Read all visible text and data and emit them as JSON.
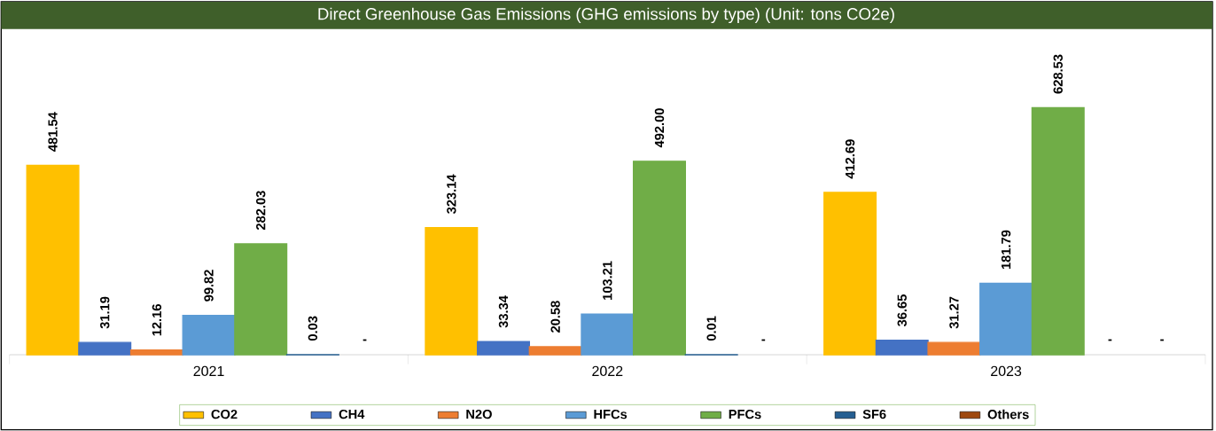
{
  "chart_data": {
    "type": "bar",
    "title": "Direct Greenhouse Gas Emissions (GHG emissions by type)  (Unit: tons CO2e)",
    "categories": [
      "2021",
      "2022",
      "2023"
    ],
    "series": [
      {
        "name": "CO2",
        "color": "#ffc000",
        "values": [
          481.54,
          323.14,
          412.69
        ],
        "value_labels": [
          "481.54",
          "323.14",
          "412.69"
        ]
      },
      {
        "name": "CH4",
        "color": "#4472c4",
        "values": [
          31.19,
          33.34,
          36.65
        ],
        "value_labels": [
          "31.19",
          "33.34",
          "36.65"
        ]
      },
      {
        "name": "N2O",
        "color": "#ed7d31",
        "values": [
          12.16,
          20.58,
          31.27
        ],
        "value_labels": [
          "12.16",
          "20.58",
          "31.27"
        ]
      },
      {
        "name": "HFCs",
        "color": "#5b9bd5",
        "values": [
          99.82,
          103.21,
          181.79
        ],
        "value_labels": [
          "99.82",
          "103.21",
          "181.79"
        ]
      },
      {
        "name": "PFCs",
        "color": "#70ad47",
        "values": [
          282.03,
          492.0,
          628.53
        ],
        "value_labels": [
          "282.03",
          "492.00",
          "628.53"
        ]
      },
      {
        "name": "SF6",
        "color": "#255e91",
        "values": [
          0.03,
          0.01,
          null
        ],
        "value_labels": [
          "0.03",
          "0.01",
          "-"
        ]
      },
      {
        "name": "Others",
        "color": "#9e480e",
        "values": [
          null,
          null,
          null
        ],
        "value_labels": [
          "-",
          "-",
          "-"
        ]
      }
    ],
    "legend": "bottom"
  }
}
